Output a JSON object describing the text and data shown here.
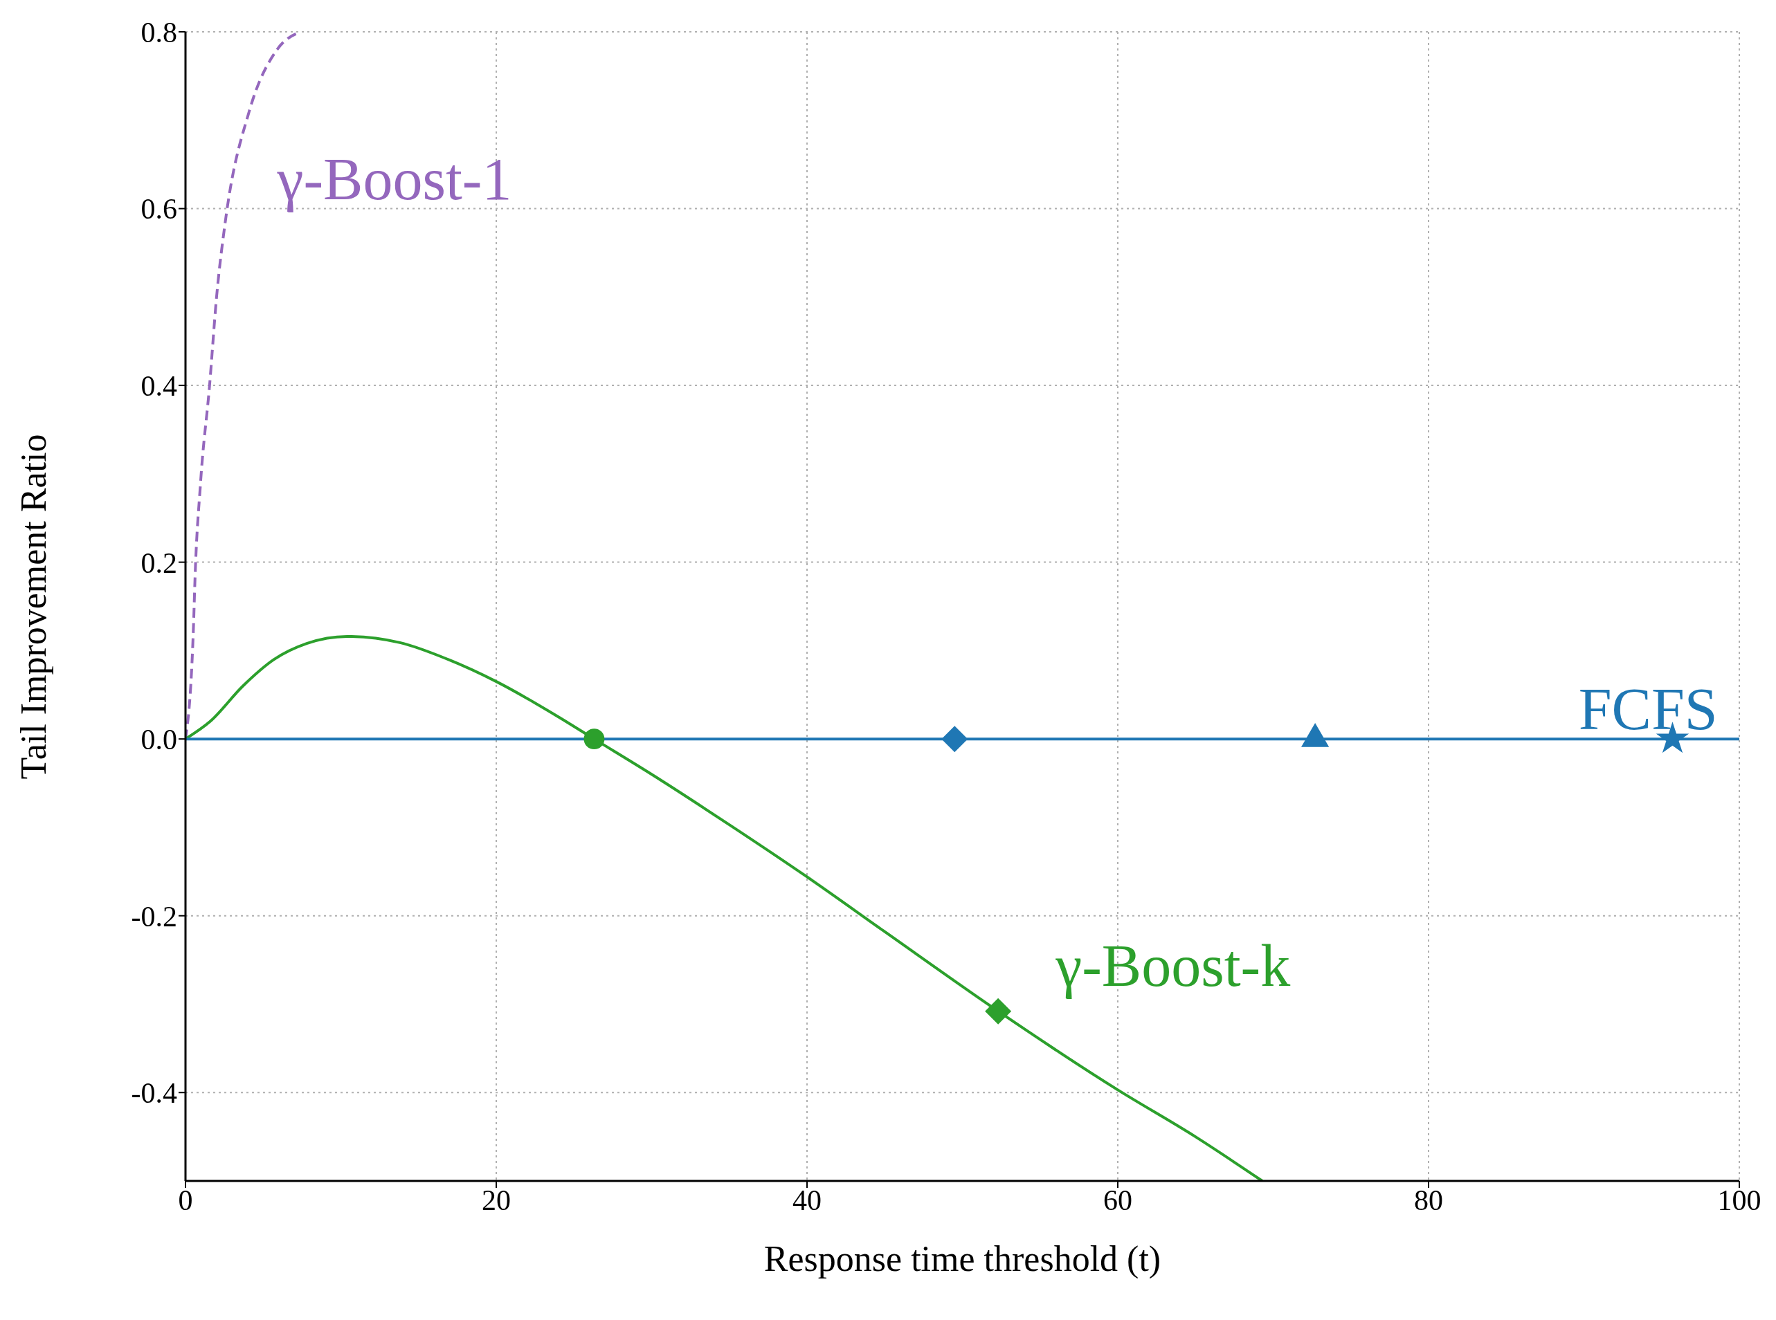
{
  "chart_data": {
    "type": "line",
    "xlabel": "Response time threshold (t)",
    "ylabel": "Tail Improvement Ratio",
    "xlim": [
      0,
      100
    ],
    "xticks": [
      0,
      20,
      40,
      60,
      80,
      100
    ],
    "ylim": [
      -0.5,
      0.8
    ],
    "yticks": [
      -0.4,
      -0.2,
      {
        "value": 0,
        "label": "0.0"
      },
      0.2,
      0.4,
      0.6,
      0.8
    ],
    "grid": true,
    "series": [
      {
        "name": "γ-Boost-1",
        "color": "#9467bd",
        "line_style": "dashed",
        "x": [
          0,
          0.52,
          0.61,
          0.97,
          1.55,
          2.0,
          2.6,
          4.1,
          5.9,
          7.4
        ],
        "values": [
          0,
          0.13,
          0.18,
          0.29,
          0.4,
          0.5,
          0.59,
          0.71,
          0.78,
          0.8
        ]
      },
      {
        "name": "γ-Boost-k",
        "color": "#2ca02c",
        "line_style": "solid",
        "x": [
          0,
          1.6,
          3.7,
          5.7,
          7.8,
          10.4,
          13.8,
          16.9,
          20,
          24,
          26.3,
          30,
          35,
          40,
          45,
          52.3,
          60,
          65,
          69.3
        ],
        "values": [
          0,
          0.02,
          0.06,
          0.09,
          0.108,
          0.116,
          0.109,
          0.09,
          0.065,
          0.025,
          0,
          -0.04,
          -0.097,
          -0.156,
          -0.218,
          -0.308,
          -0.397,
          -0.45,
          -0.5
        ]
      },
      {
        "name": "FCFS",
        "color": "#1f77b4",
        "line_style": "solid",
        "x": [
          0,
          100
        ],
        "values": [
          0,
          0
        ]
      },
      {
        "type": "scatter",
        "marker": "circle",
        "color": "#2ca02c",
        "x": [
          26.3
        ],
        "values": [
          0
        ]
      },
      {
        "type": "scatter",
        "marker": "diamond",
        "color": "#2ca02c",
        "x": [
          52.3
        ],
        "values": [
          -0.308
        ]
      },
      {
        "type": "scatter",
        "marker": "diamond",
        "color": "#1f77b4",
        "x": [
          49.5
        ],
        "values": [
          0
        ]
      },
      {
        "type": "scatter",
        "marker": "triangle",
        "color": "#1f77b4",
        "x": [
          72.7
        ],
        "values": [
          0
        ]
      },
      {
        "type": "scatter",
        "marker": "star",
        "color": "#1f77b4",
        "x": [
          95.7
        ],
        "values": [
          0
        ]
      }
    ]
  }
}
